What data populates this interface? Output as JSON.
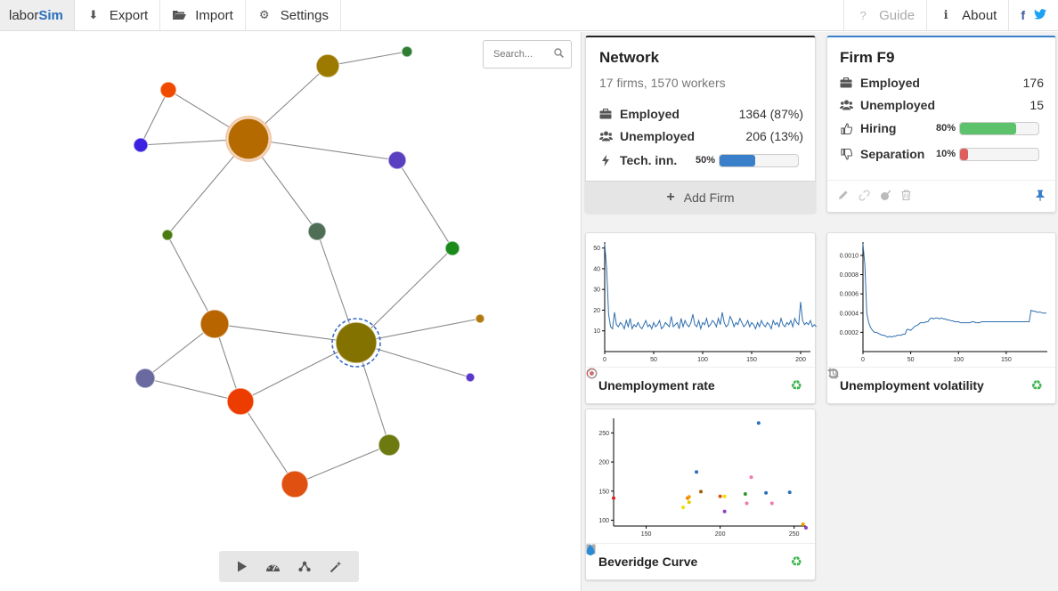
{
  "nav": {
    "brand_prefix": "labor",
    "brand_suffix": "Sim",
    "export": "Export",
    "import": "Import",
    "settings": "Settings",
    "guide": "Guide",
    "about": "About",
    "facebook": "f"
  },
  "search": {
    "placeholder": "Search..."
  },
  "network": {
    "title": "Network",
    "subtitle": "17 firms, 1570 workers",
    "employed_label": "Employed",
    "employed_value": "1364 (87%)",
    "unemployed_label": "Unemployed",
    "unemployed_value": "206 (13%)",
    "tech_label": "Tech. inn.",
    "tech_pct": "50%",
    "tech_fraction": 0.5,
    "add_firm": "Add Firm"
  },
  "firm": {
    "title": "Firm F9",
    "employed_label": "Employed",
    "employed_value": "176",
    "unemployed_label": "Unemployed",
    "unemployed_value": "15",
    "hiring_label": "Hiring",
    "hiring_pct": "80%",
    "hiring_fraction": 0.8,
    "separation_label": "Separation",
    "separation_pct": "10%",
    "separation_fraction": 0.1
  },
  "colors": {
    "accent": "#3a7fc9",
    "hiring_bar": "#5cc26b",
    "separation_bar": "#e05d5d",
    "tech_bar": "#3a7fc9",
    "line": "#2f6fb0"
  },
  "graph": {
    "nodes": [
      {
        "id": "n1",
        "color": "#9c7a00",
        "size": 13
      },
      {
        "id": "n2",
        "color": "#2e7d32",
        "size": 6
      },
      {
        "id": "n3",
        "color": "#f04a00",
        "size": 9
      },
      {
        "id": "n4",
        "color": "#b56a00",
        "size": 23
      },
      {
        "id": "n5",
        "color": "#3a22e0",
        "size": 8
      },
      {
        "id": "n6",
        "color": "#5a3fc0",
        "size": 10
      },
      {
        "id": "n7",
        "color": "#4a7a10",
        "size": 6
      },
      {
        "id": "n8",
        "color": "#4e6e55",
        "size": 10
      },
      {
        "id": "n9",
        "color": "#1a8a1a",
        "size": 8
      },
      {
        "id": "n10",
        "color": "#b86500",
        "size": 16
      },
      {
        "id": "n11",
        "color": "#6a6aa0",
        "size": 11
      },
      {
        "id": "n12",
        "color": "#847200",
        "size": 23,
        "selected": true
      },
      {
        "id": "n13",
        "color": "#b07a10",
        "size": 5
      },
      {
        "id": "n14",
        "color": "#5a38c8",
        "size": 5
      },
      {
        "id": "n15",
        "color": "#ec3c00",
        "size": 15
      },
      {
        "id": "n16",
        "color": "#6c7a10",
        "size": 12
      },
      {
        "id": "n17",
        "color": "#e05010",
        "size": 15
      }
    ],
    "edges": [
      [
        "n1",
        "n2"
      ],
      [
        "n1",
        "n4"
      ],
      [
        "n3",
        "n4"
      ],
      [
        "n3",
        "n5"
      ],
      [
        "n5",
        "n4"
      ],
      [
        "n4",
        "n6"
      ],
      [
        "n4",
        "n7"
      ],
      [
        "n4",
        "n8"
      ],
      [
        "n6",
        "n9"
      ],
      [
        "n7",
        "n10"
      ],
      [
        "n8",
        "n12"
      ],
      [
        "n9",
        "n12"
      ],
      [
        "n10",
        "n12"
      ],
      [
        "n10",
        "n11"
      ],
      [
        "n10",
        "n15"
      ],
      [
        "n11",
        "n15"
      ],
      [
        "n12",
        "n13"
      ],
      [
        "n12",
        "n14"
      ],
      [
        "n12",
        "n15"
      ],
      [
        "n12",
        "n16"
      ],
      [
        "n15",
        "n17"
      ],
      [
        "n17",
        "n16"
      ]
    ]
  },
  "charts": {
    "unemployment": {
      "title": "Unemployment rate"
    },
    "volatility": {
      "title": "Unemployment volatility"
    },
    "beveridge": {
      "title": "Beveridge Curve"
    }
  },
  "chart_data": [
    {
      "type": "line",
      "name": "unemployment-rate",
      "xlim": [
        0,
        210
      ],
      "ylim": [
        0,
        52
      ],
      "xticks": [
        0,
        50,
        100,
        150,
        200
      ],
      "yticks": [
        10,
        20,
        30,
        40,
        50
      ],
      "x_step": 2,
      "values": [
        52,
        40,
        18,
        12,
        11,
        19,
        13,
        12,
        14,
        13,
        11,
        15,
        12,
        16,
        11,
        13,
        12,
        14,
        12,
        11,
        13,
        15,
        12,
        13,
        11,
        14,
        12,
        13,
        15,
        11,
        12,
        14,
        13,
        12,
        17,
        12,
        13,
        14,
        11,
        16,
        12,
        15,
        13,
        12,
        14,
        18,
        13,
        12,
        15,
        11,
        14,
        13,
        16,
        12,
        13,
        15,
        14,
        12,
        16,
        13,
        19,
        14,
        12,
        13,
        17,
        15,
        12,
        14,
        13,
        16,
        14,
        12,
        13,
        15,
        12,
        14,
        13,
        11,
        14,
        12,
        15,
        13,
        12,
        14,
        13,
        11,
        15,
        13,
        14,
        12,
        16,
        13,
        12,
        14,
        13,
        15,
        12,
        16,
        14,
        13,
        24,
        15,
        13,
        14,
        13,
        15,
        12,
        13,
        12
      ]
    },
    {
      "type": "line",
      "name": "unemployment-volatility",
      "xlim": [
        0,
        193
      ],
      "ylim": [
        0,
        0.00112
      ],
      "xticks": [
        0,
        50,
        100,
        150
      ],
      "yticks": [
        0.0002,
        0.0004,
        0.0006,
        0.0008,
        0.001
      ],
      "yticklabels": [
        "0.0002",
        "0.0004",
        "0.0006",
        "0.0008",
        "0.0010"
      ],
      "x_step": 2,
      "values": [
        0.00112,
        0.0009,
        0.0004,
        0.0003,
        0.00025,
        0.00022,
        0.0002,
        0.0002,
        0.00019,
        0.00018,
        0.00017,
        0.00017,
        0.00016,
        0.00015,
        0.00016,
        0.00015,
        0.00016,
        0.00016,
        0.00017,
        0.00017,
        0.00017,
        0.00018,
        0.00018,
        0.00023,
        0.00023,
        0.00022,
        0.00024,
        0.00026,
        0.00027,
        0.00028,
        0.0003,
        0.0003,
        0.0003,
        0.00031,
        0.00031,
        0.00034,
        0.00035,
        0.00034,
        0.00035,
        0.00035,
        0.00034,
        0.00035,
        0.00034,
        0.00034,
        0.00033,
        0.00033,
        0.00032,
        0.00032,
        0.00031,
        0.00031,
        0.00031,
        0.0003,
        0.0003,
        0.0003,
        0.0003,
        0.0003,
        0.0003,
        0.00031,
        0.00031,
        0.0003,
        0.0003,
        0.0003,
        0.00031,
        0.00031,
        0.00031,
        0.00031,
        0.00031,
        0.00031,
        0.00031,
        0.00031,
        0.00031,
        0.00031,
        0.00031,
        0.00031,
        0.00031,
        0.00031,
        0.00031,
        0.00031,
        0.00031,
        0.00031,
        0.00031,
        0.00031,
        0.00031,
        0.00031,
        0.00031,
        0.00031,
        0.00031,
        0.00031,
        0.00043,
        0.00042,
        0.00042,
        0.00041,
        0.00041,
        0.00041,
        0.0004,
        0.0004,
        0.0004
      ]
    },
    {
      "type": "scatter",
      "name": "beveridge-curve",
      "xlim": [
        128,
        258
      ],
      "ylim": [
        90,
        272
      ],
      "xticks": [
        150,
        200,
        250
      ],
      "yticks": [
        100,
        150,
        200,
        250
      ],
      "points": [
        {
          "x": 128,
          "y": 138,
          "color": "#e02020"
        },
        {
          "x": 175,
          "y": 122,
          "color": "#f0e000"
        },
        {
          "x": 178,
          "y": 138,
          "color": "#f08000"
        },
        {
          "x": 179,
          "y": 140,
          "color": "#f0a000"
        },
        {
          "x": 179,
          "y": 131,
          "color": "#e0d000"
        },
        {
          "x": 184,
          "y": 183,
          "color": "#2a6ebb"
        },
        {
          "x": 187,
          "y": 149,
          "color": "#a06000"
        },
        {
          "x": 200,
          "y": 141,
          "color": "#e05000"
        },
        {
          "x": 203,
          "y": 115,
          "color": "#9040c0"
        },
        {
          "x": 203,
          "y": 141,
          "color": "#f0e000"
        },
        {
          "x": 217,
          "y": 145,
          "color": "#2a9a2a"
        },
        {
          "x": 218,
          "y": 129,
          "color": "#f07ab0"
        },
        {
          "x": 221,
          "y": 174,
          "color": "#f07ab0"
        },
        {
          "x": 226,
          "y": 267,
          "color": "#2a6ebb"
        },
        {
          "x": 231,
          "y": 147,
          "color": "#2a6ebb"
        },
        {
          "x": 235,
          "y": 129,
          "color": "#f07ab0"
        },
        {
          "x": 247,
          "y": 148,
          "color": "#2a6ebb"
        },
        {
          "x": 256,
          "y": 93,
          "color": "#f0a000"
        },
        {
          "x": 258,
          "y": 87,
          "color": "#9040c0"
        }
      ]
    }
  ]
}
